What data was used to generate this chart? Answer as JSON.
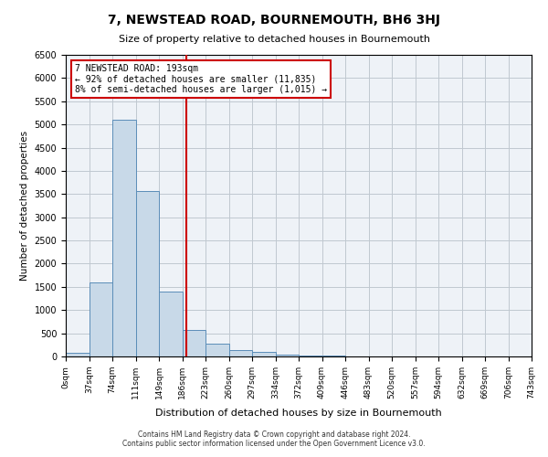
{
  "title": "7, NEWSTEAD ROAD, BOURNEMOUTH, BH6 3HJ",
  "subtitle": "Size of property relative to detached houses in Bournemouth",
  "xlabel": "Distribution of detached houses by size in Bournemouth",
  "ylabel": "Number of detached properties",
  "footer_line1": "Contains HM Land Registry data © Crown copyright and database right 2024.",
  "footer_line2": "Contains public sector information licensed under the Open Government Licence v3.0.",
  "bin_labels": [
    "0sqm",
    "37sqm",
    "74sqm",
    "111sqm",
    "149sqm",
    "186sqm",
    "223sqm",
    "260sqm",
    "297sqm",
    "334sqm",
    "372sqm",
    "409sqm",
    "446sqm",
    "483sqm",
    "520sqm",
    "557sqm",
    "594sqm",
    "632sqm",
    "669sqm",
    "706sqm",
    "743sqm"
  ],
  "bin_values": [
    80,
    1600,
    5100,
    3560,
    1400,
    580,
    270,
    130,
    90,
    40,
    25,
    15,
    8,
    5,
    3,
    2,
    1,
    1,
    0,
    0
  ],
  "bar_color": "#c8d9e8",
  "bar_edge_color": "#5b8db8",
  "grid_color": "#c0c8d0",
  "background_color": "#eef2f7",
  "annotation_text_line1": "7 NEWSTEAD ROAD: 193sqm",
  "annotation_text_line2": "← 92% of detached houses are smaller (11,835)",
  "annotation_text_line3": "8% of semi-detached houses are larger (1,015) →",
  "annotation_box_color": "#ffffff",
  "annotation_box_edge_color": "#cc0000",
  "vline_color": "#cc0000",
  "ylim": [
    0,
    6500
  ],
  "yticks": [
    0,
    500,
    1000,
    1500,
    2000,
    2500,
    3000,
    3500,
    4000,
    4500,
    5000,
    5500,
    6000,
    6500
  ]
}
